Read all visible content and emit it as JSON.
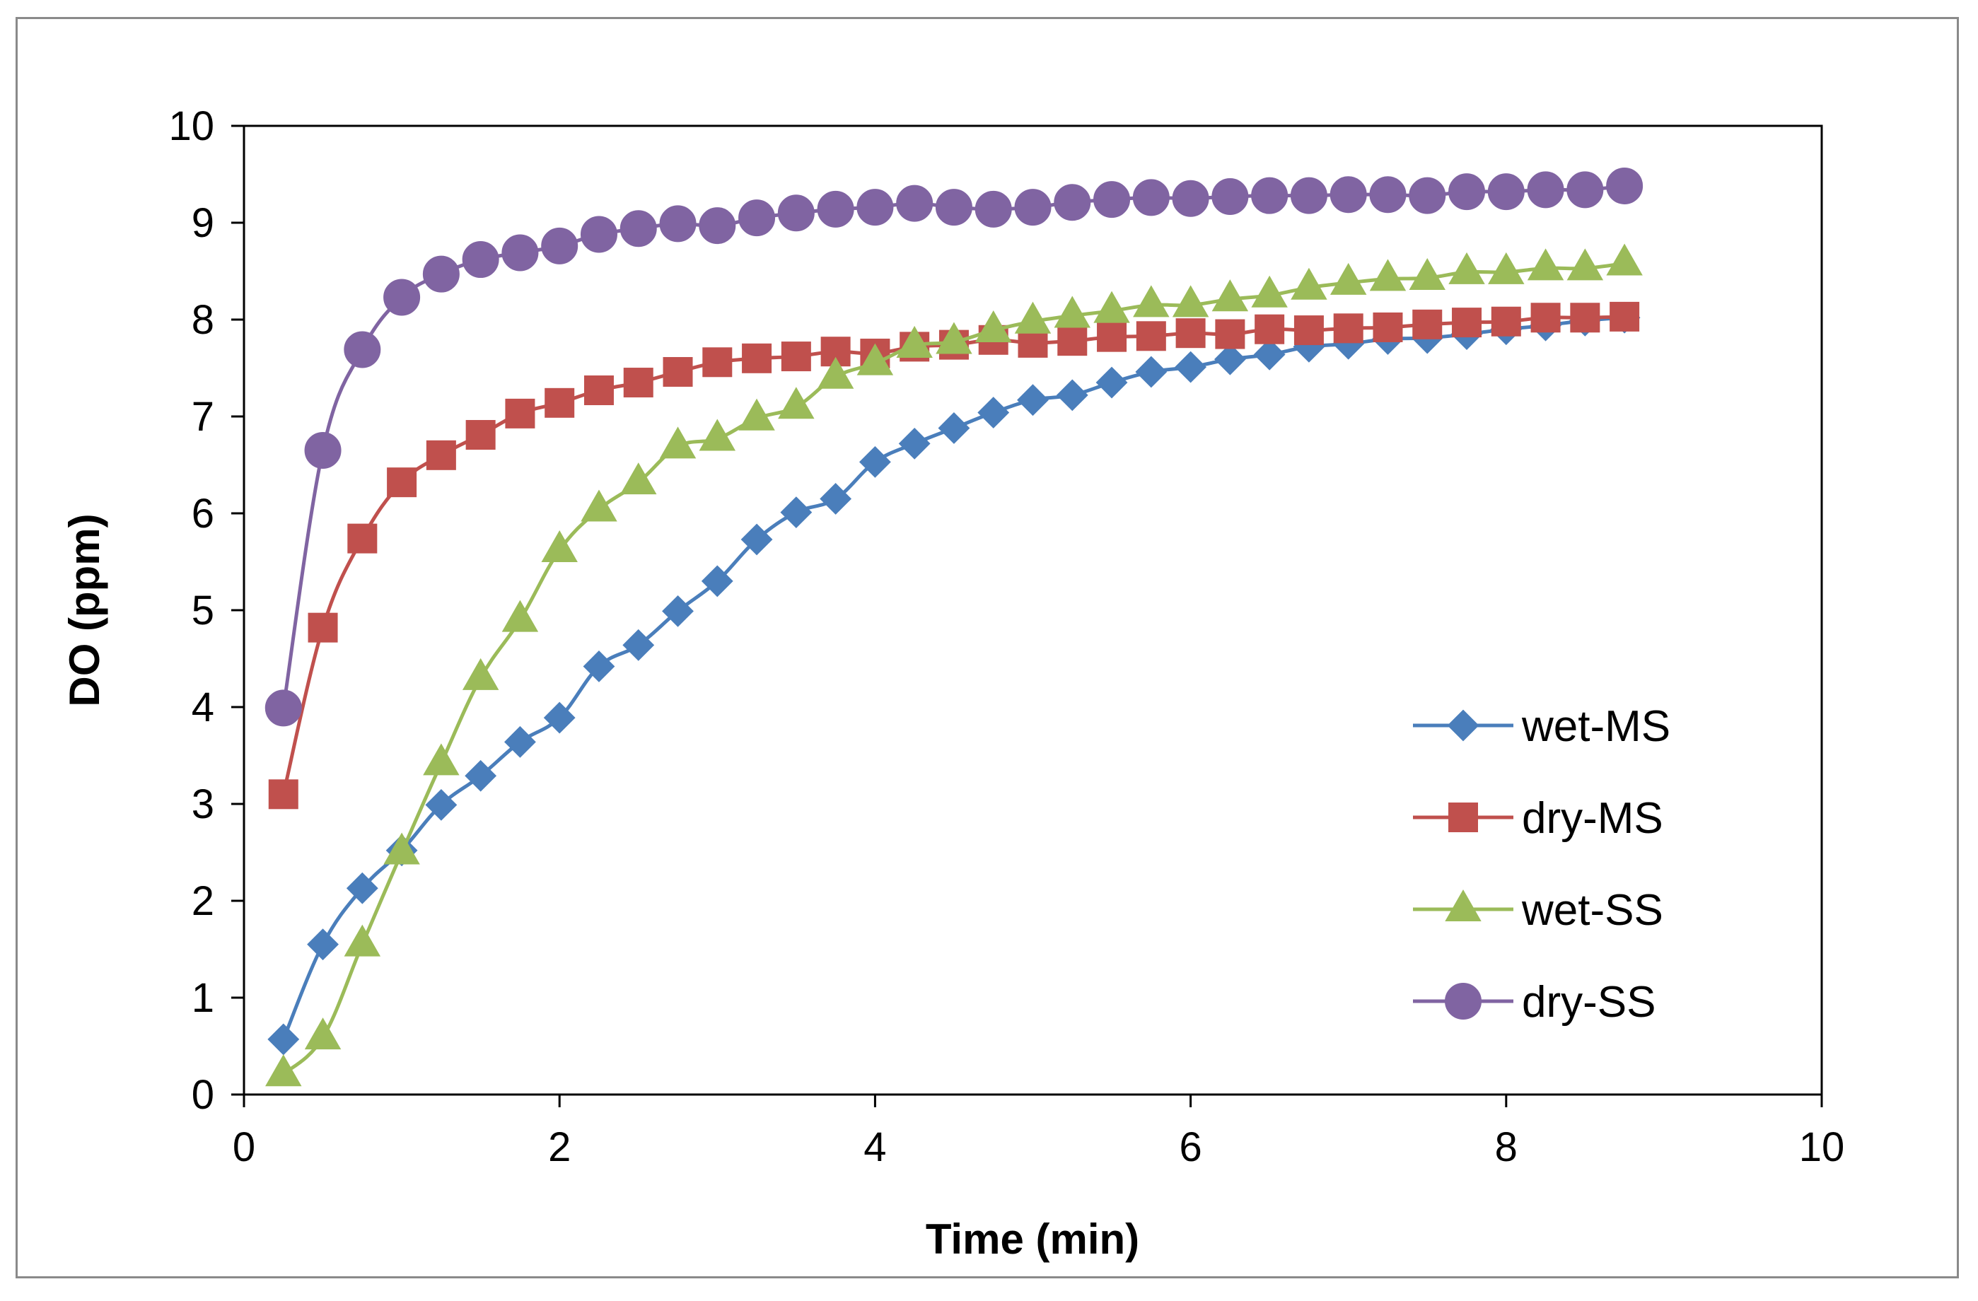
{
  "chart_data": {
    "type": "line",
    "title": "",
    "xlabel": "Time (min)",
    "ylabel": "DO (ppm)",
    "xlim": [
      0,
      10
    ],
    "ylim": [
      0,
      10
    ],
    "xticks": [
      0,
      2,
      4,
      6,
      8,
      10
    ],
    "yticks": [
      0,
      1,
      2,
      3,
      4,
      5,
      6,
      7,
      8,
      9,
      10
    ],
    "grid": false,
    "legend_position": "lower-right",
    "x": [
      0.25,
      0.5,
      0.75,
      1.0,
      1.25,
      1.5,
      1.75,
      2.0,
      2.25,
      2.5,
      2.75,
      3.0,
      3.25,
      3.5,
      3.75,
      4.0,
      4.25,
      4.5,
      4.75,
      5.0,
      5.25,
      5.5,
      5.75,
      6.0,
      6.25,
      6.5,
      6.75,
      7.0,
      7.25,
      7.5,
      7.75,
      8.0,
      8.25,
      8.5,
      8.75
    ],
    "series": [
      {
        "name": "wet-MS",
        "color": "#4a7ebb",
        "marker": "diamond",
        "values": [
          0.57,
          1.55,
          2.13,
          2.52,
          2.99,
          3.29,
          3.64,
          3.89,
          4.42,
          4.64,
          4.99,
          5.3,
          5.73,
          6.01,
          6.15,
          6.53,
          6.72,
          6.88,
          7.04,
          7.17,
          7.22,
          7.35,
          7.46,
          7.51,
          7.59,
          7.64,
          7.72,
          7.75,
          7.8,
          7.81,
          7.85,
          7.9,
          7.94,
          7.99,
          8.02
        ]
      },
      {
        "name": "dry-MS",
        "color": "#c0504d",
        "marker": "square",
        "values": [
          3.1,
          4.82,
          5.74,
          6.32,
          6.6,
          6.81,
          7.03,
          7.14,
          7.27,
          7.35,
          7.46,
          7.56,
          7.6,
          7.62,
          7.67,
          7.65,
          7.72,
          7.74,
          7.79,
          7.76,
          7.78,
          7.82,
          7.83,
          7.86,
          7.85,
          7.9,
          7.89,
          7.91,
          7.92,
          7.95,
          7.97,
          7.98,
          8.02,
          8.02,
          8.03
        ]
      },
      {
        "name": "wet-SS",
        "color": "#9bbb59",
        "marker": "triangle",
        "values": [
          0.21,
          0.59,
          1.55,
          2.5,
          3.42,
          4.3,
          4.9,
          5.62,
          6.04,
          6.32,
          6.69,
          6.77,
          6.98,
          7.1,
          7.41,
          7.55,
          7.73,
          7.77,
          7.89,
          7.98,
          8.04,
          8.09,
          8.15,
          8.15,
          8.21,
          8.25,
          8.33,
          8.38,
          8.42,
          8.43,
          8.49,
          8.49,
          8.53,
          8.53,
          8.58
        ]
      },
      {
        "name": "dry-SS",
        "color": "#8064a2",
        "marker": "circle",
        "values": [
          3.99,
          6.65,
          7.69,
          8.23,
          8.47,
          8.62,
          8.69,
          8.76,
          8.88,
          8.94,
          8.99,
          8.97,
          9.05,
          9.1,
          9.14,
          9.16,
          9.2,
          9.16,
          9.14,
          9.16,
          9.21,
          9.24,
          9.26,
          9.25,
          9.27,
          9.28,
          9.28,
          9.29,
          9.29,
          9.28,
          9.32,
          9.32,
          9.34,
          9.34,
          9.38
        ]
      }
    ]
  }
}
